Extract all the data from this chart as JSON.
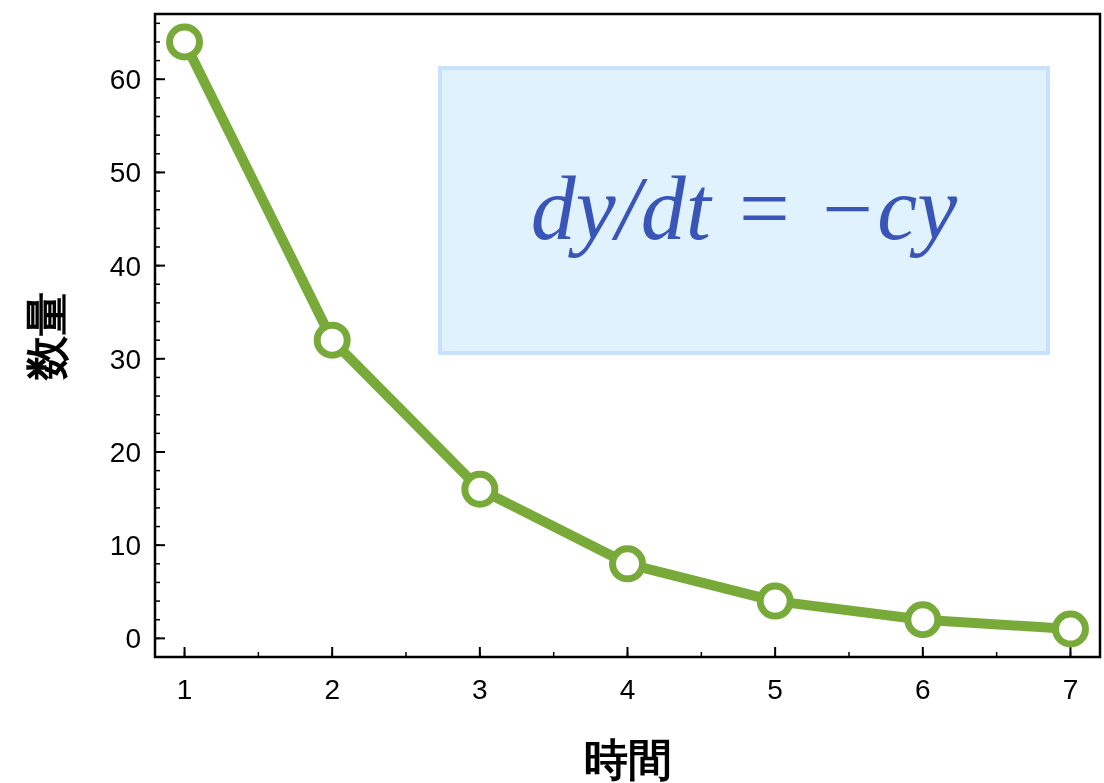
{
  "chart_data": {
    "type": "line",
    "xlabel": "時間",
    "ylabel": "数量",
    "x": [
      1,
      2,
      3,
      4,
      5,
      6,
      7
    ],
    "series": [
      {
        "color": "#78aa3a",
        "values": [
          64,
          32,
          16,
          8,
          4,
          2,
          1
        ]
      }
    ],
    "xlim": [
      0.8,
      7.2
    ],
    "ylim": [
      -2,
      67
    ],
    "xticks": [
      1,
      2,
      3,
      4,
      5,
      6,
      7
    ],
    "yticks": [
      0,
      10,
      20,
      30,
      40,
      50,
      60
    ],
    "marker": "circle",
    "line_style": "solid",
    "annotations": [
      "dy/dt = −cy"
    ]
  }
}
